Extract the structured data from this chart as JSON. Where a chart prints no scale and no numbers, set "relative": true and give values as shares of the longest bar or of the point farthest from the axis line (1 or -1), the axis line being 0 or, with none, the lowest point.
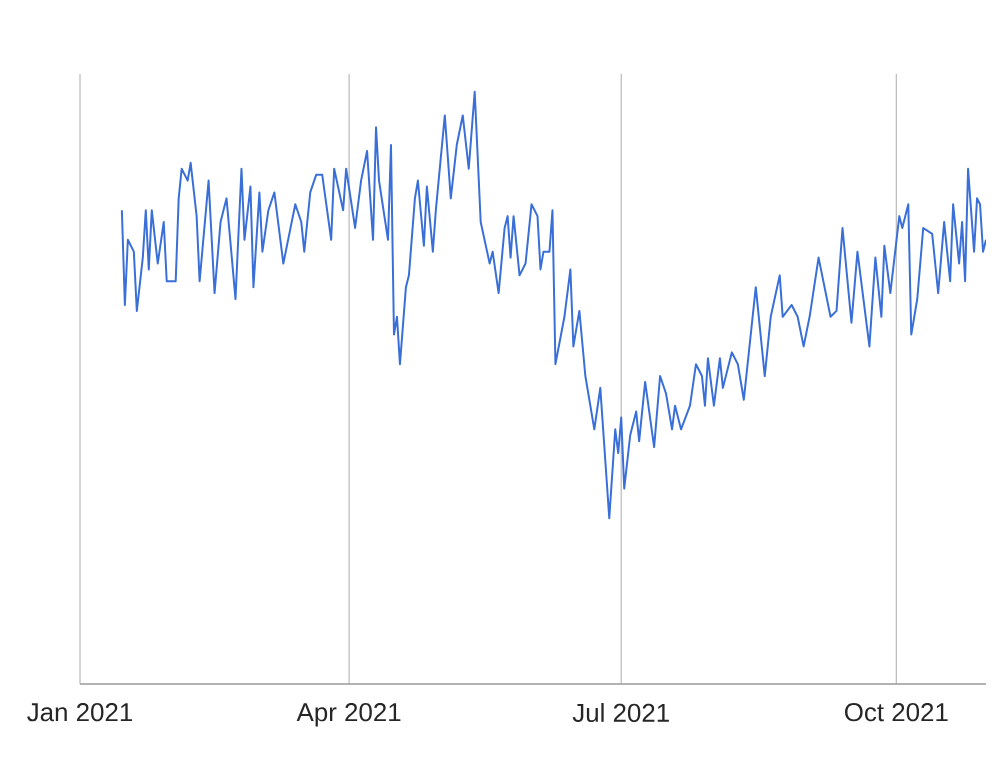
{
  "chart_data": {
    "type": "line",
    "relative": true,
    "color": "#3a6fd8",
    "grid": true,
    "xlim": [
      "2021-01-01",
      "2021-10-31"
    ],
    "xticks": [
      {
        "value": "2021-01-01",
        "label": "Jan 2021"
      },
      {
        "value": "2021-04-01",
        "label": "Apr 2021"
      },
      {
        "value": "2021-07-01",
        "label": "Jul 2021"
      },
      {
        "value": "2021-10-01",
        "label": "Oct 2021"
      }
    ],
    "x": [
      "2021-01-15",
      "2021-01-16",
      "2021-01-17",
      "2021-01-19",
      "2021-01-20",
      "2021-01-22",
      "2021-01-23",
      "2021-01-24",
      "2021-01-25",
      "2021-01-27",
      "2021-01-29",
      "2021-01-30",
      "2021-02-02",
      "2021-02-03",
      "2021-02-04",
      "2021-02-06",
      "2021-02-07",
      "2021-02-09",
      "2021-02-10",
      "2021-02-13",
      "2021-02-15",
      "2021-02-17",
      "2021-02-19",
      "2021-02-22",
      "2021-02-24",
      "2021-02-25",
      "2021-02-27",
      "2021-02-28",
      "2021-03-02",
      "2021-03-03",
      "2021-03-05",
      "2021-03-07",
      "2021-03-10",
      "2021-03-14",
      "2021-03-16",
      "2021-03-17",
      "2021-03-19",
      "2021-03-21",
      "2021-03-23",
      "2021-03-26",
      "2021-03-27",
      "2021-03-30",
      "2021-03-31",
      "2021-04-03",
      "2021-04-05",
      "2021-04-07",
      "2021-04-09",
      "2021-04-10",
      "2021-04-11",
      "2021-04-14",
      "2021-04-15",
      "2021-04-16",
      "2021-04-17",
      "2021-04-18",
      "2021-04-20",
      "2021-04-21",
      "2021-04-23",
      "2021-04-24",
      "2021-04-26",
      "2021-04-27",
      "2021-04-29",
      "2021-04-30",
      "2021-05-03",
      "2021-05-05",
      "2021-05-07",
      "2021-05-09",
      "2021-05-11",
      "2021-05-13",
      "2021-05-15",
      "2021-05-18",
      "2021-05-19",
      "2021-05-21",
      "2021-05-23",
      "2021-05-24",
      "2021-05-25",
      "2021-05-26",
      "2021-05-28",
      "2021-05-30",
      "2021-06-01",
      "2021-06-03",
      "2021-06-04",
      "2021-06-05",
      "2021-06-07",
      "2021-06-08",
      "2021-06-09",
      "2021-06-12",
      "2021-06-14",
      "2021-06-15",
      "2021-06-17",
      "2021-06-19",
      "2021-06-22",
      "2021-06-24",
      "2021-06-27",
      "2021-06-29",
      "2021-06-30",
      "2021-07-01",
      "2021-07-02",
      "2021-07-04",
      "2021-07-06",
      "2021-07-07",
      "2021-07-09",
      "2021-07-12",
      "2021-07-14",
      "2021-07-16",
      "2021-07-18",
      "2021-07-19",
      "2021-07-21",
      "2021-07-24",
      "2021-07-26",
      "2021-07-28",
      "2021-07-29",
      "2021-07-30",
      "2021-08-01",
      "2021-08-03",
      "2021-08-04",
      "2021-08-07",
      "2021-08-09",
      "2021-08-11",
      "2021-08-15",
      "2021-08-18",
      "2021-08-20",
      "2021-08-23",
      "2021-08-24",
      "2021-08-27",
      "2021-08-29",
      "2021-08-31",
      "2021-09-02",
      "2021-09-05",
      "2021-09-09",
      "2021-09-11",
      "2021-09-13",
      "2021-09-16",
      "2021-09-18",
      "2021-09-22",
      "2021-09-24",
      "2021-09-26",
      "2021-09-27",
      "2021-09-29",
      "2021-10-02",
      "2021-10-03",
      "2021-10-05",
      "2021-10-06",
      "2021-10-08",
      "2021-10-10",
      "2021-10-13",
      "2021-10-15",
      "2021-10-17",
      "2021-10-19",
      "2021-10-20",
      "2021-10-22",
      "2021-10-23",
      "2021-10-24",
      "2021-10-25",
      "2021-10-27",
      "2021-10-28",
      "2021-10-29",
      "2021-10-30",
      "2021-10-31"
    ],
    "values": [
      0.8,
      0.64,
      0.75,
      0.73,
      0.63,
      0.72,
      0.8,
      0.7,
      0.8,
      0.71,
      0.78,
      0.68,
      0.68,
      0.82,
      0.87,
      0.85,
      0.88,
      0.79,
      0.68,
      0.85,
      0.66,
      0.78,
      0.82,
      0.65,
      0.87,
      0.75,
      0.84,
      0.67,
      0.83,
      0.73,
      0.8,
      0.83,
      0.71,
      0.81,
      0.78,
      0.73,
      0.83,
      0.86,
      0.86,
      0.75,
      0.87,
      0.8,
      0.87,
      0.77,
      0.85,
      0.9,
      0.75,
      0.94,
      0.85,
      0.75,
      0.91,
      0.59,
      0.62,
      0.54,
      0.67,
      0.69,
      0.82,
      0.85,
      0.74,
      0.84,
      0.73,
      0.8,
      0.96,
      0.82,
      0.91,
      0.96,
      0.87,
      1.0,
      0.78,
      0.71,
      0.73,
      0.66,
      0.77,
      0.79,
      0.72,
      0.79,
      0.69,
      0.71,
      0.81,
      0.79,
      0.7,
      0.73,
      0.73,
      0.8,
      0.54,
      0.62,
      0.7,
      0.57,
      0.63,
      0.52,
      0.43,
      0.5,
      0.28,
      0.43,
      0.39,
      0.45,
      0.33,
      0.42,
      0.46,
      0.41,
      0.51,
      0.4,
      0.52,
      0.49,
      0.43,
      0.47,
      0.43,
      0.47,
      0.54,
      0.52,
      0.47,
      0.55,
      0.47,
      0.55,
      0.5,
      0.56,
      0.54,
      0.48,
      0.67,
      0.52,
      0.62,
      0.69,
      0.62,
      0.64,
      0.62,
      0.57,
      0.62,
      0.72,
      0.62,
      0.63,
      0.77,
      0.61,
      0.73,
      0.57,
      0.72,
      0.62,
      0.74,
      0.66,
      0.79,
      0.77,
      0.81,
      0.59,
      0.65,
      0.77,
      0.76,
      0.66,
      0.78,
      0.68,
      0.81,
      0.71,
      0.78,
      0.68,
      0.87,
      0.73,
      0.82,
      0.81,
      0.73,
      0.75
    ]
  }
}
